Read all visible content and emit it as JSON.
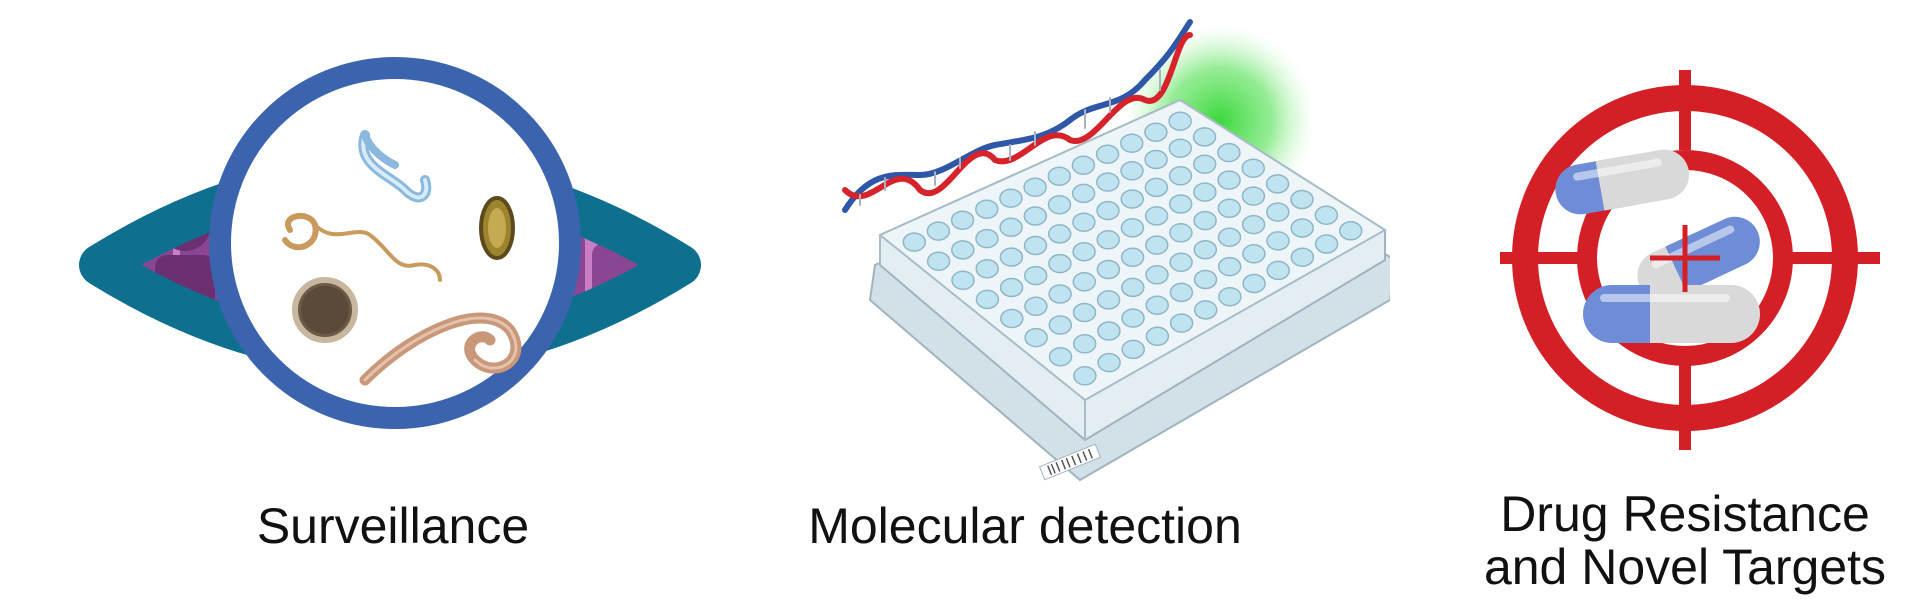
{
  "panels": [
    {
      "id": "surveillance",
      "label": "Surveillance"
    },
    {
      "id": "molecular",
      "label": "Molecular detection"
    },
    {
      "id": "drug",
      "label_line1": "Drug Resistance",
      "label_line2": "and Novel Targets"
    }
  ],
  "icons": {
    "surveillance": "eye-with-parasites-icon",
    "molecular": "dna-microplate-icon",
    "drug": "target-with-capsules-icon"
  },
  "colors": {
    "eye": "#0e6f8f",
    "lens_ring": "#3c63ad",
    "dna_red": "#d6232b",
    "dna_blue": "#2f57a8",
    "glow": "#33d633",
    "plate": "#dde9ef",
    "well": "#bfe3f1",
    "target": "#d41f26",
    "capsule_blue": "#6f8dd6",
    "capsule_grey": "#d9d9d9"
  }
}
